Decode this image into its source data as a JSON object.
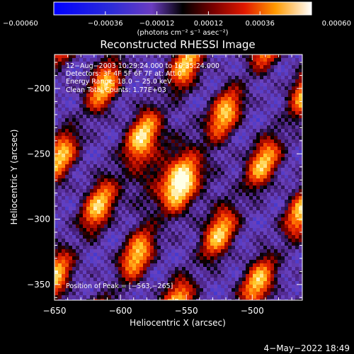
{
  "chart_data": {
    "type": "heatmap",
    "title": "Reconstructed RHESSI Image",
    "xlabel": "Heliocentric X (arcsec)",
    "ylabel": "Heliocentric Y (arcsec)",
    "xlim": [
      -650,
      -462
    ],
    "ylim": [
      -362,
      -174
    ],
    "x_ticks": [
      -650,
      -600,
      -550,
      -500
    ],
    "y_ticks": [
      -200,
      -250,
      -300,
      -350
    ],
    "x_tick_labels": [
      "−650",
      "−600",
      "−550",
      "−500"
    ],
    "y_tick_labels": [
      "−200",
      "−250",
      "−300",
      "−350"
    ],
    "colorbar": {
      "range": [
        -0.0006,
        0.0006
      ],
      "ticks": [
        -0.0006,
        -0.00036,
        -0.00012,
        0.00012,
        0.00036,
        0.0006
      ],
      "tick_labels": [
        "−0.00060",
        "−0.00036",
        "−0.00012",
        "0.00012",
        "0.00036",
        "0.00060"
      ],
      "units": "(photons cm⁻² s⁻¹ asec⁻²)"
    },
    "annotations": {
      "time": "12−Aug−2003 10:29:24.000 to 10:35:24.000",
      "detectors": "Detectors: 3F 4F 5F 6F 7F  at: Att 0",
      "energy": "Energy Range: 18.0 − 25.0 keV",
      "method": "Clean     Total Counts: 1.77E+03",
      "peak": "Position of Peak = [−563,−265]"
    },
    "peak": {
      "x": -563,
      "y": -265
    }
  },
  "footer": {
    "date": "4−May−2022 18:49"
  }
}
